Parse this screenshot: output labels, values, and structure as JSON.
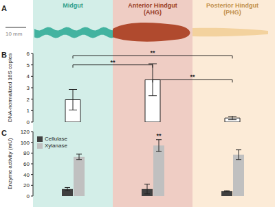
{
  "panel_a": {
    "panel": "A",
    "scale_bar": "10 mm",
    "regions": [
      "Midgut",
      "Anterior Hindgut (AHG)",
      "Posterior Hindgut (PHG)"
    ]
  },
  "chart_data": [
    {
      "type": "bar",
      "panel": "B",
      "y_label": "DNA-normalized 16S copies",
      "categories": [
        "Midgut",
        "Anterior Hindgut (AHG)",
        "Posterior Hindgut (PHG)"
      ],
      "values": [
        1.95,
        3.7,
        0.35
      ],
      "errors": [
        0.9,
        1.4,
        0.15
      ],
      "color": "#ffffff",
      "ylim": [
        0,
        6
      ],
      "yticks": [
        0,
        1,
        2,
        3,
        4,
        5,
        6
      ],
      "tick_labels": "y",
      "significance": [
        {
          "from": "Midgut",
          "to": "Posterior Hindgut (PHG)",
          "y": 5.8,
          "label": "**"
        },
        {
          "from": "Midgut",
          "to": "Anterior Hindgut (AHG)",
          "y": 5.0,
          "label": "**"
        },
        {
          "from": "Anterior Hindgut (AHG)",
          "to": "Posterior Hindgut (PHG)",
          "y": 3.7,
          "label": "**"
        }
      ]
    },
    {
      "type": "bar",
      "panel": "C",
      "y_label": "Enzyme activity (mU)",
      "categories": [
        "Midgut",
        "Anterior Hindgut (AHG)",
        "Posterior Hindgut (PHG)"
      ],
      "series": [
        {
          "name": "Cellulase",
          "color": "#404040",
          "values": [
            13,
            13,
            9
          ],
          "errors": [
            3,
            9,
            1
          ]
        },
        {
          "name": "Xylanase",
          "color": "#c0c0c0",
          "values": [
            73,
            94,
            77
          ],
          "errors": [
            5,
            11,
            9
          ],
          "significance": [
            null,
            "**",
            null
          ]
        }
      ],
      "ylim": [
        0,
        120
      ],
      "yticks": [
        0,
        20,
        40,
        60,
        80,
        100,
        120
      ],
      "legend": "upper left",
      "tick_labels": "y"
    }
  ]
}
